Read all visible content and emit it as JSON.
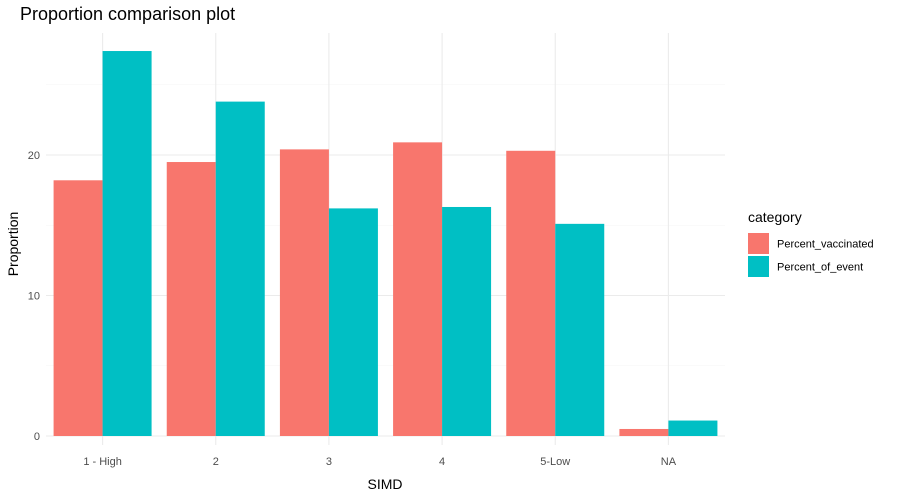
{
  "chart_data": {
    "type": "bar",
    "title": "Proportion comparison plot",
    "xlabel": "SIMD",
    "ylabel": "Proportion",
    "categories": [
      "1 - High",
      "2",
      "3",
      "4",
      "5-Low",
      "NA"
    ],
    "series": [
      {
        "name": "Percent_vaccinated",
        "color": "#F8766D",
        "values": [
          18.2,
          19.5,
          20.4,
          20.9,
          20.3,
          0.5
        ]
      },
      {
        "name": "Percent_of_event",
        "color": "#00BFC4",
        "values": [
          27.4,
          23.8,
          16.2,
          16.3,
          15.1,
          1.1
        ]
      }
    ],
    "ylim": [
      0,
      28.5
    ],
    "y_ticks": [
      0,
      10,
      20
    ],
    "grid": true,
    "legend": {
      "title": "category",
      "position": "right"
    }
  }
}
